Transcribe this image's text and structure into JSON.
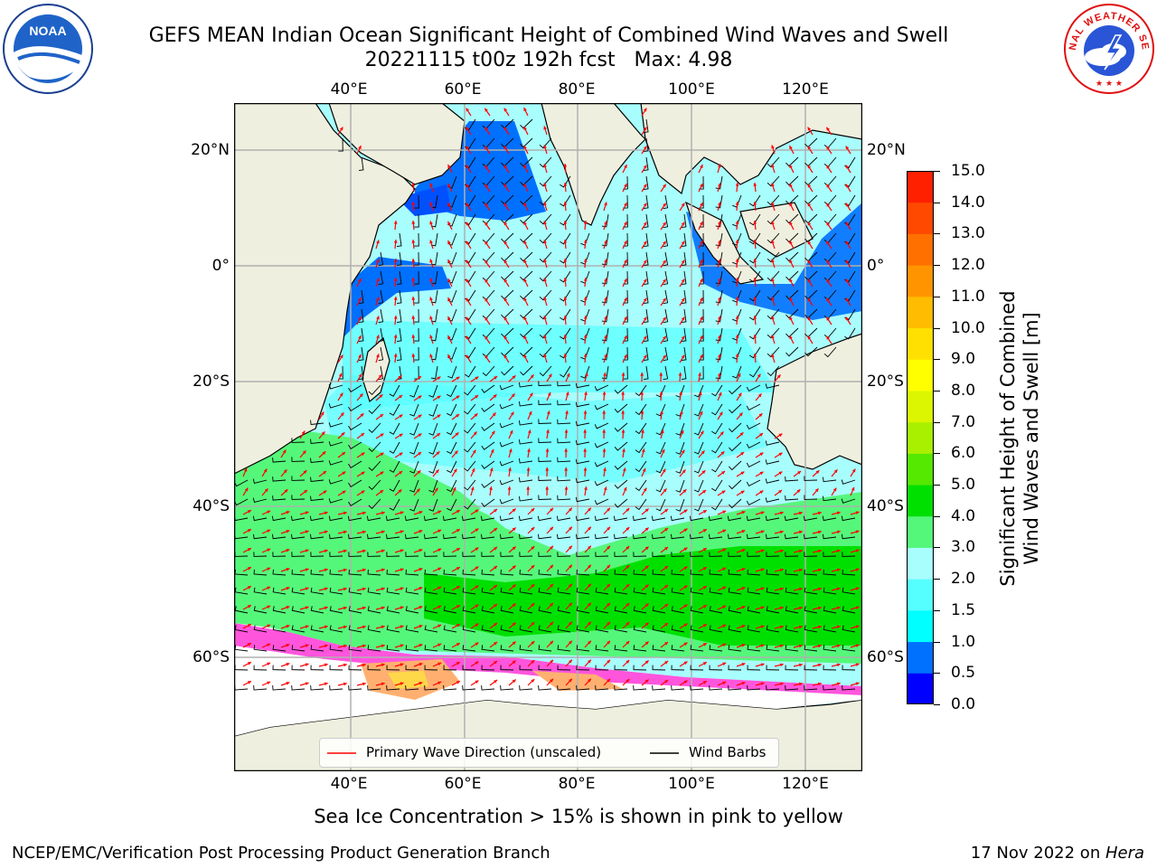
{
  "title": {
    "line1": "GEFS MEAN Indian Ocean Significant Height of Combined Wind Waves and Swell",
    "line2": "20221115 t00z 192h fcst   Max: 4.98"
  },
  "logos": {
    "left": "noaa-logo",
    "left_text": "NOAA",
    "right": "national-weather-service-logo",
    "right_text": "NATIONAL WEATHER SERVICE"
  },
  "map": {
    "lon_labels": [
      "40°E",
      "60°E",
      "80°E",
      "100°E",
      "120°E"
    ],
    "lat_labels": [
      "20°N",
      "0°",
      "20°S",
      "40°S",
      "60°S"
    ],
    "ocean_color": "#a8fdfd",
    "land_color": "#efefdf",
    "ice_colors": [
      "#ff55dd",
      "#ffb070",
      "#ffd84a"
    ]
  },
  "colorbar": {
    "title_line1": "Significant Height of Combined",
    "title_line2": "Wind Waves and Swell [m]",
    "ticks": [
      "15.0",
      "14.0",
      "13.0",
      "12.0",
      "11.0",
      "10.0",
      "9.0",
      "8.0",
      "7.0",
      "6.0",
      "5.0",
      "4.0",
      "3.0",
      "2.0",
      "1.5",
      "1.0",
      "0.5",
      "0.0"
    ],
    "colors_bottom_to_top": [
      "#0000ff",
      "#0070ff",
      "#00ffff",
      "#55ffff",
      "#a8fdfd",
      "#55f77a",
      "#00e000",
      "#55e800",
      "#a8f000",
      "#dcf500",
      "#ffff00",
      "#ffe000",
      "#ffbc00",
      "#ff9400",
      "#ff7000",
      "#ff4800",
      "#ff2000"
    ]
  },
  "legend": {
    "wave_label": "Primary Wave Direction (unscaled)",
    "wind_label": "Wind Barbs",
    "wave_color": "#ff0000",
    "wind_color": "#000000"
  },
  "footer": {
    "note": "Sea Ice Concentration > 15% is shown in pink to yellow",
    "left": "NCEP/EMC/Verification Post Processing Product Generation Branch",
    "right_date": "17 Nov 2022 on ",
    "right_host": "Hera"
  }
}
